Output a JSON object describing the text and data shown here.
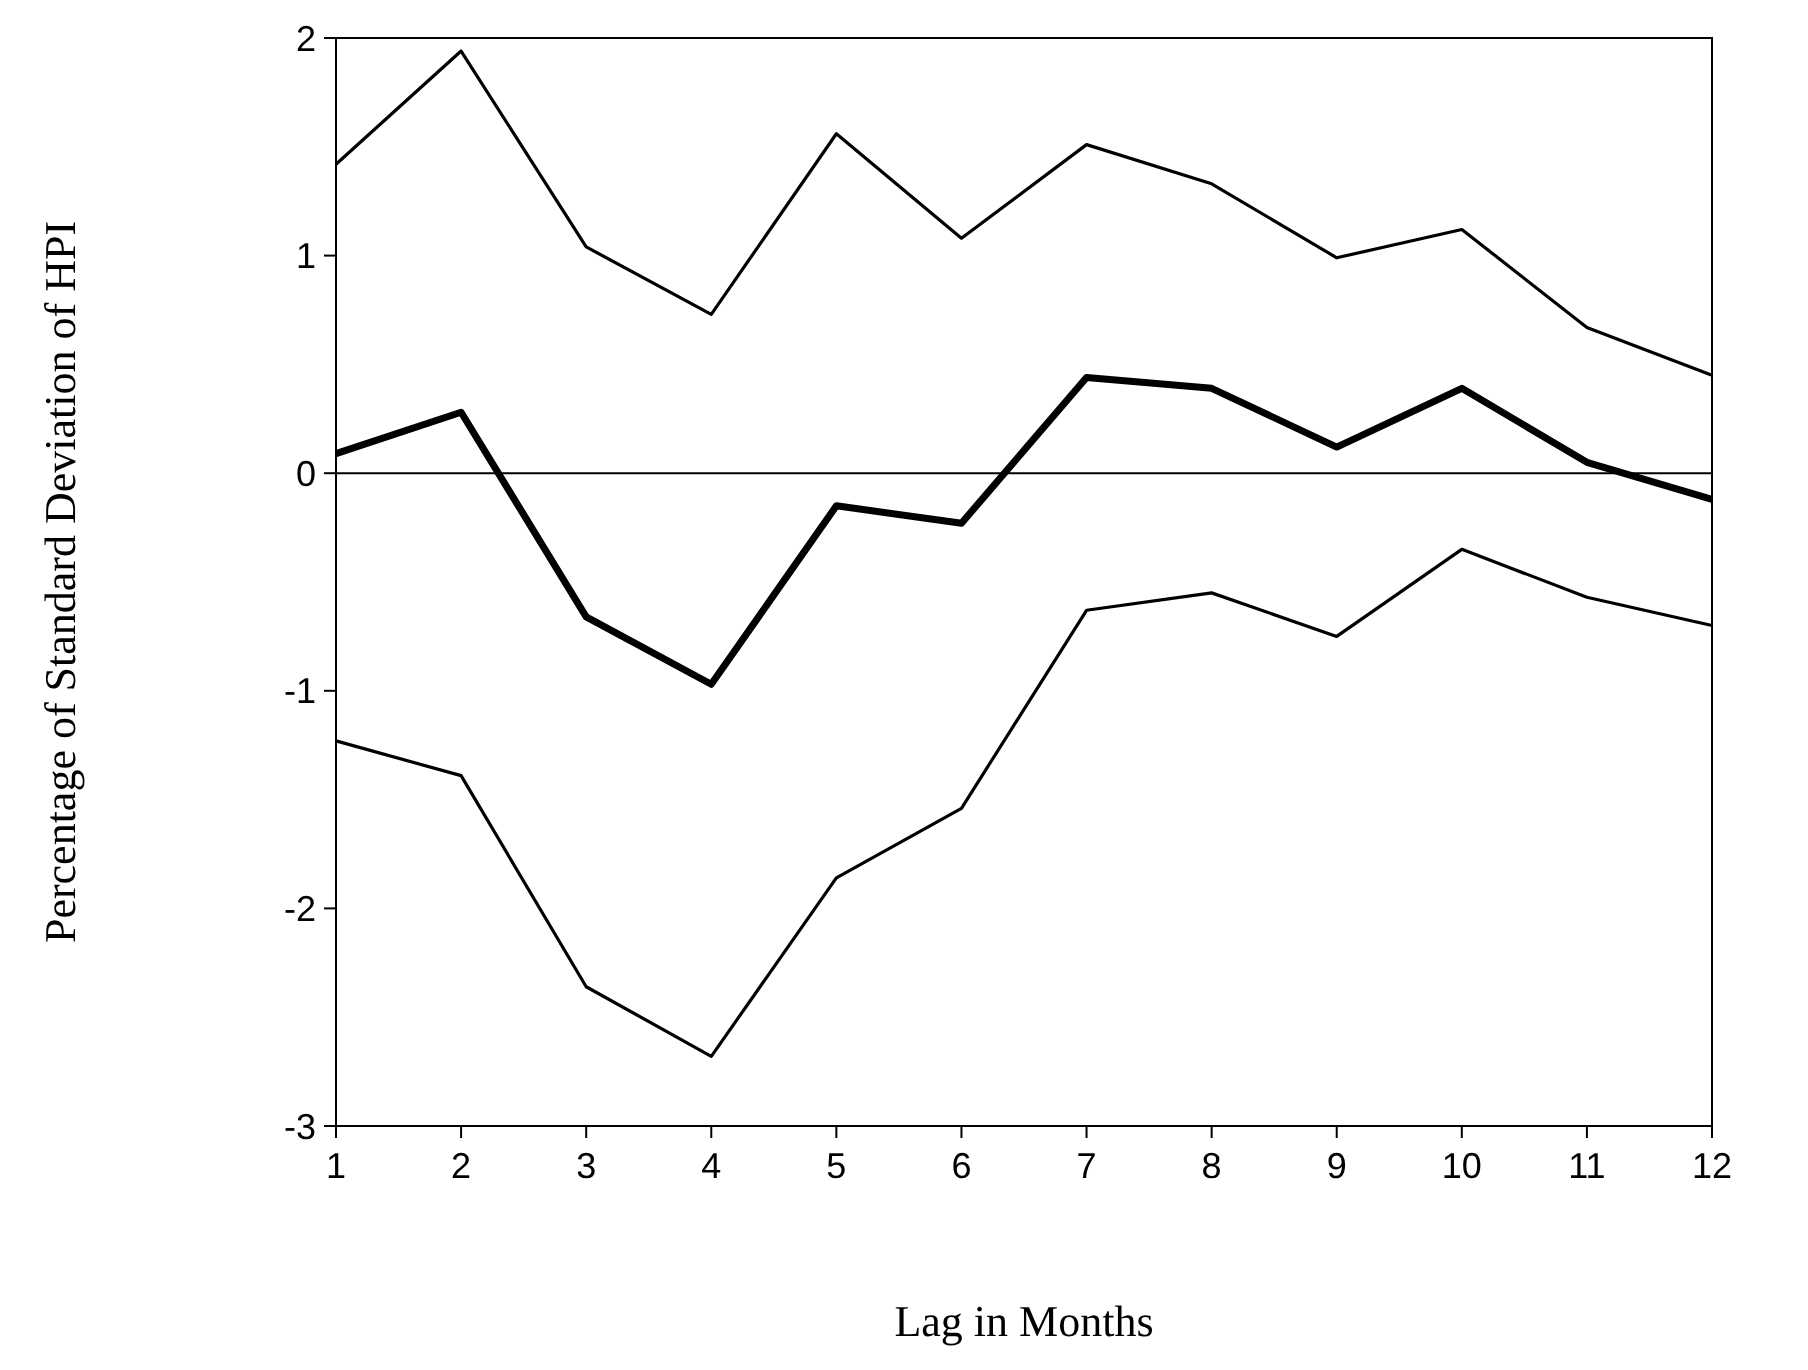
{
  "chart_data": {
    "type": "line",
    "xlabel": "Lag in Months",
    "ylabel": "Percentage of Standard Deviation of HPI",
    "x": [
      1,
      2,
      3,
      4,
      5,
      6,
      7,
      8,
      9,
      10,
      11,
      12
    ],
    "series": [
      {
        "color": "#000000",
        "values": [
          0.09,
          0.28,
          -0.66,
          -0.97,
          -0.15,
          -0.23,
          0.44,
          0.39,
          0.12,
          0.39,
          0.05,
          -0.12
        ]
      },
      {
        "color": "#000000",
        "values": [
          1.42,
          1.94,
          1.04,
          0.73,
          1.56,
          1.08,
          1.51,
          1.33,
          0.99,
          1.12,
          0.67,
          0.45
        ]
      },
      {
        "color": "#000000",
        "values": [
          -1.23,
          -1.39,
          -2.36,
          -2.68,
          -1.86,
          -1.54,
          -0.63,
          -0.55,
          -0.75,
          -0.35,
          -0.57,
          -0.7
        ]
      }
    ],
    "xlim": [
      1,
      12
    ],
    "xticks": [
      1,
      2,
      3,
      4,
      5,
      6,
      7,
      8,
      9,
      10,
      11,
      12
    ],
    "ylim": [
      -3,
      2
    ],
    "yticks": [
      -3,
      -2,
      -1,
      0,
      1,
      2
    ],
    "ref_lines": [
      {
        "axis": "y",
        "value": 0,
        "color": "#000000"
      }
    ],
    "grid": false,
    "marker": "none",
    "line_style": "solid"
  }
}
